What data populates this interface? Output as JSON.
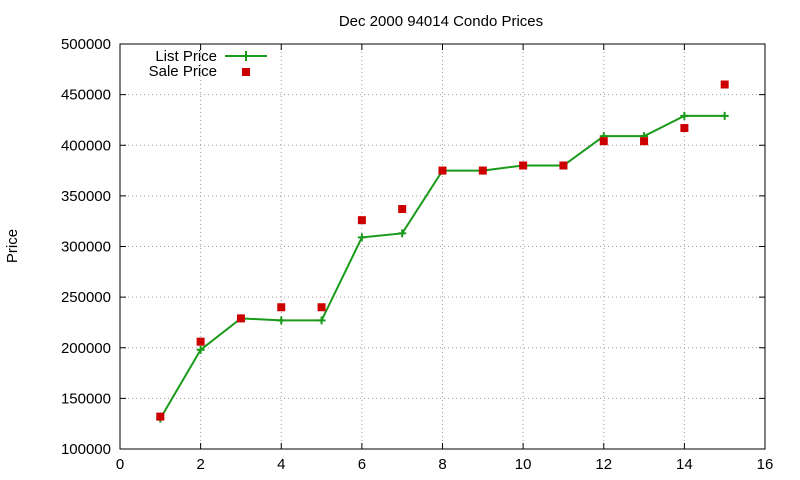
{
  "chart_data": {
    "type": "line",
    "title": "Dec 2000 94014 Condo Prices",
    "xlabel": "",
    "ylabel": "Price",
    "xlim": [
      0,
      16
    ],
    "ylim": [
      100000,
      500000
    ],
    "x_ticks": [
      0,
      2,
      4,
      6,
      8,
      10,
      12,
      14,
      16
    ],
    "y_ticks": [
      100000,
      150000,
      200000,
      250000,
      300000,
      350000,
      400000,
      450000,
      500000
    ],
    "x_tick_labels": [
      "0",
      "2",
      "4",
      "6",
      "8",
      "10",
      "12",
      "14",
      "16"
    ],
    "y_tick_labels": [
      "100000",
      "150000",
      "200000",
      "250000",
      "300000",
      "350000",
      "400000",
      "450000",
      "500000"
    ],
    "grid": true,
    "legend_position": "top-left",
    "series": [
      {
        "name": "List Price",
        "style": "line-with-plus-markers",
        "color": "#1a9a1a",
        "x": [
          1,
          2,
          3,
          4,
          5,
          6,
          7,
          8,
          9,
          10,
          11,
          12,
          13,
          14,
          15
        ],
        "y": [
          130000,
          198000,
          229000,
          227000,
          227000,
          309000,
          313000,
          375000,
          375000,
          380000,
          380000,
          409000,
          409000,
          429000,
          429000
        ]
      },
      {
        "name": "Sale Price",
        "style": "square-markers",
        "color": "#cc0000",
        "x": [
          1,
          2,
          3,
          4,
          5,
          6,
          7,
          8,
          9,
          10,
          11,
          12,
          13,
          14,
          15
        ],
        "y": [
          132000,
          206000,
          229000,
          240000,
          240000,
          326000,
          337000,
          375000,
          375000,
          380000,
          380000,
          404000,
          404000,
          417000,
          460000
        ]
      }
    ]
  }
}
